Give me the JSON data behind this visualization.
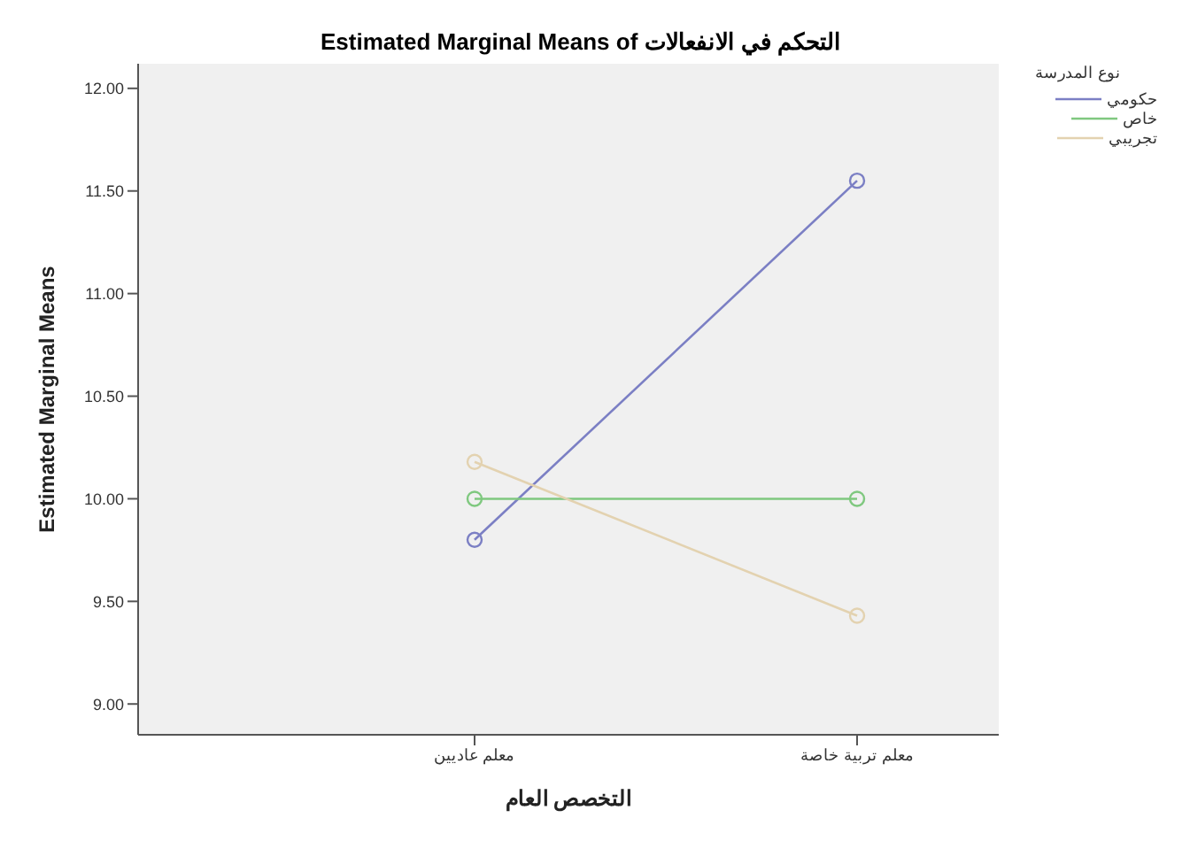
{
  "chart_data": {
    "type": "line",
    "title": "Estimated Marginal Means of التحكم في الانفعالات",
    "xlabel": "التخصص العام",
    "ylabel": "Estimated Marginal Means",
    "legend_title": "نوع المدرسة",
    "categories": [
      "معلم عاديين",
      "معلم تربية خاصة"
    ],
    "series": [
      {
        "name": "حكومي",
        "color": "#7b7fc4",
        "values": [
          9.8,
          11.55
        ]
      },
      {
        "name": "خاص",
        "color": "#7fc87f",
        "values": [
          10.0,
          10.0
        ]
      },
      {
        "name": "تجريبي",
        "color": "#e3d2b0",
        "values": [
          10.18,
          9.43
        ]
      }
    ],
    "ylim": [
      8.85,
      12.12
    ],
    "yticks": [
      {
        "value": 9,
        "label": "9.00"
      },
      {
        "value": 9.5,
        "label": "9.50"
      },
      {
        "value": 10,
        "label": "10.00"
      },
      {
        "value": 10.5,
        "label": "10.50"
      },
      {
        "value": 11,
        "label": "11.00"
      },
      {
        "value": 11.5,
        "label": "11.50"
      },
      {
        "value": 12,
        "label": "12.00"
      }
    ],
    "grid": false,
    "legend": "top right",
    "marker": "circle",
    "line_style": "solid"
  }
}
